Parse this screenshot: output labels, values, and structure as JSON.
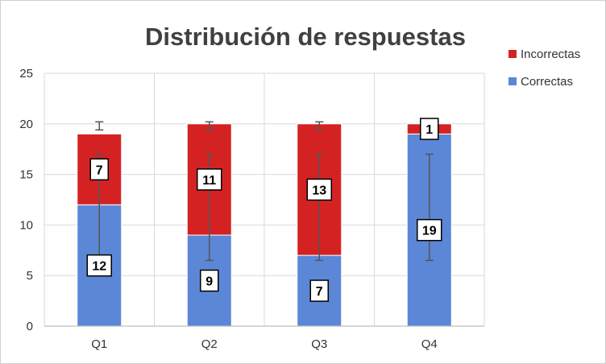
{
  "chart_data": {
    "type": "bar",
    "stacked": true,
    "title": "Distribución de respuestas",
    "xlabel": "",
    "ylabel": "",
    "categories": [
      "Q1",
      "Q2",
      "Q3",
      "Q4"
    ],
    "ylim": [
      0,
      25
    ],
    "yticks": [
      0,
      5,
      10,
      15,
      20,
      25
    ],
    "grid": true,
    "legend_position": "top-right",
    "series": [
      {
        "name": "Correctas",
        "color": "#5b87d6",
        "values": [
          12,
          9,
          7,
          19
        ],
        "error_bars": [
          [
            6.5,
            17
          ],
          [
            6.5,
            17
          ],
          [
            6.5,
            17
          ],
          [
            6.5,
            17
          ]
        ]
      },
      {
        "name": "Incorrectas",
        "color": "#d42222",
        "values": [
          7,
          11,
          13,
          1
        ],
        "error_bars": [
          [
            19.4,
            20.2
          ],
          [
            19.4,
            20.2
          ],
          [
            19.4,
            20.2
          ],
          [
            19.4,
            20.2
          ]
        ]
      }
    ]
  }
}
